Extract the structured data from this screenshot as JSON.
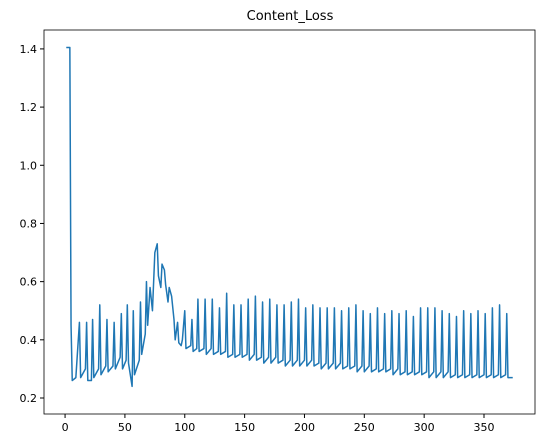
{
  "chart_data": {
    "type": "line",
    "title": "Content_Loss",
    "x": [
      1,
      4,
      5,
      6,
      9,
      12,
      13,
      17,
      18,
      19,
      22,
      23,
      24,
      28,
      29,
      30,
      34,
      35,
      36,
      40,
      41,
      42,
      46,
      47,
      48,
      51,
      52,
      53,
      56,
      57,
      58,
      62,
      63,
      64,
      67,
      68,
      69,
      71,
      73,
      75,
      77,
      78,
      80,
      81,
      83,
      84,
      86,
      87,
      89,
      91,
      92,
      94,
      95,
      97,
      98,
      100,
      101,
      105,
      106,
      107,
      110,
      111,
      112,
      116,
      117,
      118,
      122,
      123,
      124,
      128,
      129,
      130,
      134,
      135,
      136,
      140,
      141,
      142,
      146,
      147,
      148,
      152,
      153,
      154,
      158,
      159,
      160,
      164,
      165,
      166,
      170,
      171,
      172,
      176,
      177,
      178,
      182,
      183,
      184,
      188,
      189,
      190,
      194,
      195,
      196,
      200,
      201,
      202,
      206,
      207,
      208,
      212,
      213,
      214,
      218,
      219,
      220,
      224,
      225,
      226,
      230,
      231,
      232,
      236,
      237,
      238,
      242,
      243,
      244,
      248,
      249,
      250,
      254,
      255,
      256,
      260,
      261,
      262,
      266,
      267,
      268,
      272,
      273,
      274,
      278,
      279,
      280,
      284,
      285,
      286,
      290,
      291,
      292,
      296,
      297,
      298,
      302,
      303,
      304,
      308,
      309,
      310,
      314,
      315,
      316,
      320,
      321,
      322,
      326,
      327,
      328,
      332,
      333,
      334,
      338,
      339,
      340,
      344,
      345,
      346,
      350,
      351,
      352,
      356,
      357,
      358,
      362,
      363,
      364,
      368,
      369,
      370,
      374
    ],
    "series": [
      {
        "name": "Content_Loss",
        "color": "#1f77b4",
        "values": [
          1.405,
          1.405,
          0.45,
          0.26,
          0.27,
          0.46,
          0.27,
          0.3,
          0.46,
          0.26,
          0.26,
          0.47,
          0.27,
          0.3,
          0.52,
          0.28,
          0.31,
          0.47,
          0.29,
          0.31,
          0.46,
          0.3,
          0.34,
          0.49,
          0.3,
          0.33,
          0.52,
          0.32,
          0.24,
          0.5,
          0.28,
          0.33,
          0.53,
          0.35,
          0.42,
          0.6,
          0.45,
          0.58,
          0.5,
          0.7,
          0.73,
          0.62,
          0.58,
          0.66,
          0.64,
          0.59,
          0.53,
          0.58,
          0.55,
          0.47,
          0.4,
          0.46,
          0.39,
          0.38,
          0.4,
          0.5,
          0.37,
          0.38,
          0.47,
          0.36,
          0.37,
          0.54,
          0.36,
          0.37,
          0.54,
          0.35,
          0.37,
          0.54,
          0.35,
          0.36,
          0.51,
          0.35,
          0.36,
          0.56,
          0.34,
          0.35,
          0.52,
          0.34,
          0.35,
          0.52,
          0.34,
          0.35,
          0.54,
          0.33,
          0.35,
          0.55,
          0.33,
          0.34,
          0.53,
          0.32,
          0.34,
          0.54,
          0.32,
          0.34,
          0.52,
          0.32,
          0.33,
          0.52,
          0.31,
          0.33,
          0.53,
          0.31,
          0.33,
          0.54,
          0.31,
          0.33,
          0.51,
          0.31,
          0.33,
          0.52,
          0.31,
          0.32,
          0.51,
          0.3,
          0.32,
          0.51,
          0.3,
          0.32,
          0.51,
          0.3,
          0.32,
          0.5,
          0.3,
          0.31,
          0.51,
          0.3,
          0.31,
          0.52,
          0.29,
          0.31,
          0.5,
          0.29,
          0.31,
          0.49,
          0.29,
          0.3,
          0.51,
          0.29,
          0.3,
          0.49,
          0.29,
          0.3,
          0.5,
          0.28,
          0.3,
          0.49,
          0.28,
          0.29,
          0.5,
          0.28,
          0.29,
          0.48,
          0.28,
          0.29,
          0.51,
          0.28,
          0.29,
          0.51,
          0.27,
          0.29,
          0.51,
          0.27,
          0.29,
          0.5,
          0.27,
          0.29,
          0.49,
          0.27,
          0.28,
          0.48,
          0.27,
          0.28,
          0.5,
          0.27,
          0.28,
          0.49,
          0.27,
          0.28,
          0.5,
          0.27,
          0.28,
          0.49,
          0.27,
          0.28,
          0.51,
          0.27,
          0.28,
          0.52,
          0.27,
          0.28,
          0.49,
          0.27,
          0.27
        ]
      }
    ],
    "xlim": [
      -17.6,
      392.6
    ],
    "ylim": [
      0.145,
      1.465
    ],
    "xticks": [
      0,
      50,
      100,
      150,
      200,
      250,
      300,
      350
    ],
    "yticks": [
      0.2,
      0.4,
      0.6,
      0.8,
      {
        "value": 1.0,
        "label": "1.0"
      },
      1.2,
      1.4
    ],
    "grid": false
  }
}
